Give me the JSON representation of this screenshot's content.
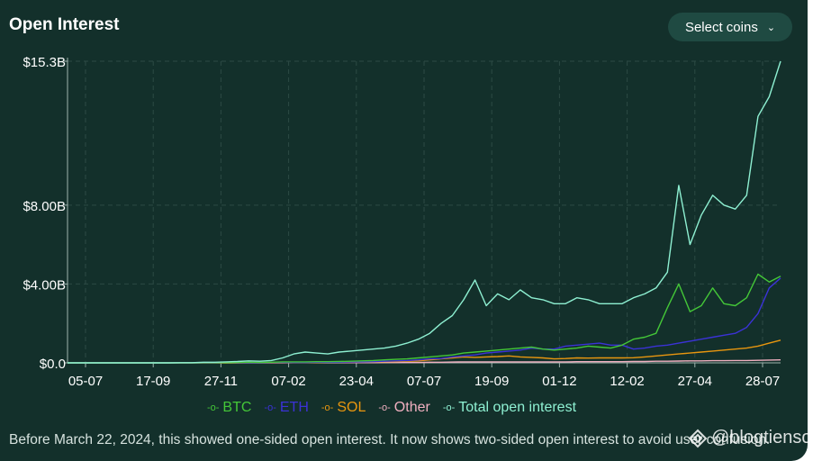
{
  "header": {
    "title": "Open Interest",
    "select_label": "Select coins",
    "select_icon": "chevron-down-icon"
  },
  "footnote": "Before March 22, 2024, this showed one-sided open interest. It now shows two-sided open interest to avoid user confusion.",
  "watermark": "@blogtienso",
  "colors": {
    "background": "#13302b",
    "BTC": "#44c738",
    "ETH": "#3b32d6",
    "SOL": "#e8960f",
    "Other": "#f0b0c0",
    "Total open interest": "#8ef0d2"
  },
  "chart_data": {
    "type": "line",
    "title": "Open Interest",
    "x_tick_labels": [
      "05-07",
      "17-09",
      "27-11",
      "07-02",
      "23-04",
      "07-07",
      "19-09",
      "01-12",
      "12-02",
      "27-04",
      "28-07"
    ],
    "y_tick_labels": [
      "$0.0",
      "$4.00B",
      "$8.00B",
      "$15.3B"
    ],
    "y_ticks": [
      0,
      4,
      8,
      15.3
    ],
    "ylim": [
      0,
      15.3
    ],
    "y_unit": "billion USD",
    "grid": true,
    "legend_position": "bottom",
    "series": [
      {
        "name": "BTC",
        "values": [
          0,
          0,
          0,
          0,
          0,
          0,
          0,
          0,
          0,
          0,
          0,
          0,
          0.01,
          0.01,
          0.01,
          0.02,
          0.03,
          0.02,
          0.03,
          0.05,
          0.05,
          0.05,
          0.06,
          0.06,
          0.07,
          0.08,
          0.1,
          0.12,
          0.15,
          0.18,
          0.2,
          0.25,
          0.3,
          0.35,
          0.4,
          0.5,
          0.55,
          0.6,
          0.65,
          0.7,
          0.75,
          0.8,
          0.7,
          0.65,
          0.7,
          0.75,
          0.85,
          0.8,
          0.75,
          0.9,
          1.2,
          1.3,
          1.5,
          2.8,
          4.0,
          2.6,
          2.9,
          3.8,
          3.0,
          2.9,
          3.3,
          4.5,
          4.1,
          4.4
        ]
      },
      {
        "name": "ETH",
        "values": [
          0,
          0,
          0,
          0,
          0,
          0,
          0,
          0,
          0,
          0,
          0,
          0,
          0,
          0,
          0.01,
          0.01,
          0.01,
          0.01,
          0.02,
          0.02,
          0.02,
          0.02,
          0.03,
          0.03,
          0.03,
          0.04,
          0.05,
          0.06,
          0.08,
          0.1,
          0.12,
          0.15,
          0.2,
          0.22,
          0.3,
          0.35,
          0.4,
          0.5,
          0.55,
          0.6,
          0.65,
          0.75,
          0.7,
          0.7,
          0.85,
          0.9,
          0.95,
          1.0,
          0.9,
          0.9,
          0.7,
          0.75,
          0.85,
          0.9,
          1.0,
          1.1,
          1.2,
          1.3,
          1.4,
          1.5,
          1.8,
          2.5,
          3.8,
          4.3
        ]
      },
      {
        "name": "SOL",
        "values": [
          0,
          0,
          0,
          0,
          0,
          0,
          0,
          0,
          0,
          0,
          0,
          0,
          0,
          0,
          0,
          0,
          0.01,
          0.01,
          0.01,
          0.01,
          0.02,
          0.02,
          0.02,
          0.03,
          0.03,
          0.03,
          0.04,
          0.05,
          0.06,
          0.07,
          0.08,
          0.1,
          0.15,
          0.2,
          0.25,
          0.3,
          0.28,
          0.3,
          0.32,
          0.35,
          0.3,
          0.28,
          0.25,
          0.2,
          0.22,
          0.25,
          0.24,
          0.25,
          0.25,
          0.25,
          0.26,
          0.3,
          0.35,
          0.4,
          0.45,
          0.5,
          0.55,
          0.6,
          0.65,
          0.7,
          0.75,
          0.85,
          1.0,
          1.15
        ]
      },
      {
        "name": "Other",
        "values": [
          0,
          0,
          0,
          0,
          0,
          0,
          0,
          0,
          0,
          0,
          0,
          0,
          0,
          0,
          0,
          0,
          0,
          0,
          0,
          0,
          0.01,
          0.01,
          0.01,
          0.01,
          0.01,
          0.01,
          0.01,
          0.01,
          0.02,
          0.02,
          0.02,
          0.02,
          0.03,
          0.03,
          0.04,
          0.05,
          0.05,
          0.05,
          0.05,
          0.05,
          0.05,
          0.05,
          0.05,
          0.05,
          0.05,
          0.06,
          0.06,
          0.06,
          0.06,
          0.06,
          0.07,
          0.07,
          0.08,
          0.08,
          0.09,
          0.1,
          0.1,
          0.11,
          0.11,
          0.12,
          0.12,
          0.13,
          0.14,
          0.15
        ]
      },
      {
        "name": "Total open interest",
        "values": [
          0,
          0,
          0,
          0,
          0,
          0,
          0,
          0,
          0,
          0,
          0.01,
          0.01,
          0.03,
          0.03,
          0.05,
          0.07,
          0.1,
          0.08,
          0.12,
          0.25,
          0.45,
          0.55,
          0.5,
          0.45,
          0.55,
          0.6,
          0.65,
          0.7,
          0.75,
          0.85,
          1.0,
          1.2,
          1.5,
          2.0,
          2.4,
          3.2,
          4.2,
          2.9,
          3.5,
          3.2,
          3.7,
          3.3,
          3.2,
          3.0,
          3.0,
          3.3,
          3.2,
          3.0,
          3.0,
          3.0,
          3.3,
          3.5,
          3.8,
          4.6,
          9.0,
          6.0,
          7.5,
          8.5,
          8.0,
          7.8,
          8.5,
          12.5,
          13.5,
          15.3
        ]
      }
    ]
  }
}
